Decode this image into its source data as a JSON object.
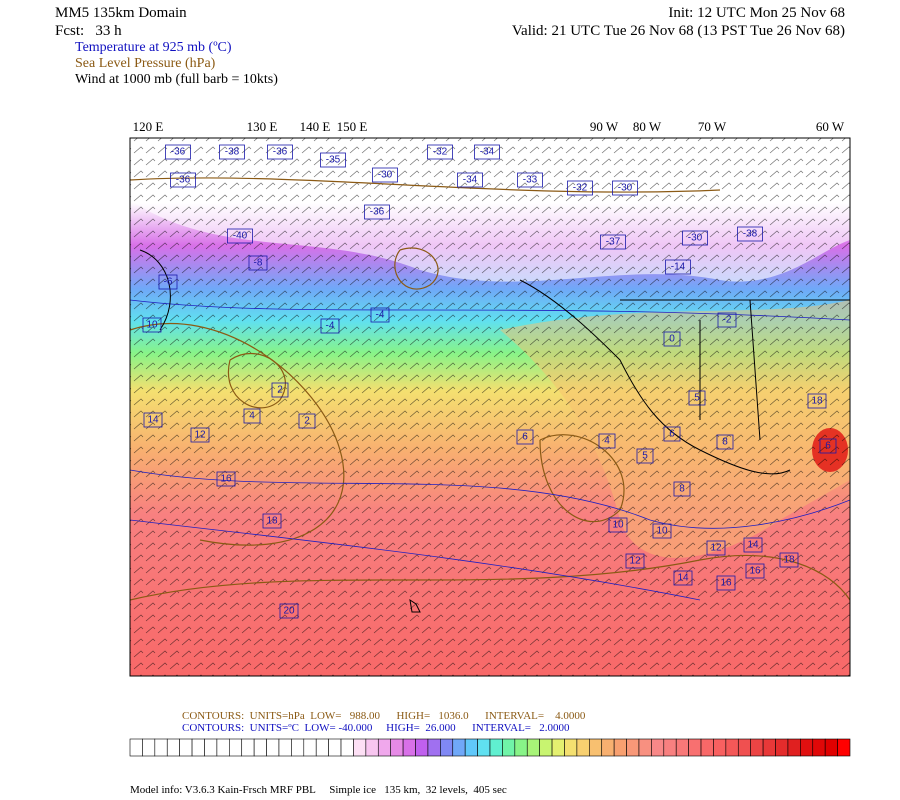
{
  "header": {
    "domain": "MM5 135km Domain",
    "forecast": "Fcst:   33 h",
    "init": "Init: 12 UTC Mon 25 Nov 68",
    "valid": "Valid: 21 UTC Tue 26 Nov 68 (13 PST Tue 26 Nov 68)"
  },
  "fields": {
    "temperature": "Temperature at 925 mb (ºC)",
    "pressure": "Sea Level Pressure (hPa)",
    "wind": "Wind at 1000 mb (full barb = 10kts)"
  },
  "map": {
    "longitudes": [
      "120 E",
      "130 E",
      "140 E",
      "150 E",
      "90 W",
      "80 W",
      "70 W",
      "60 W"
    ],
    "labels": [
      "-36",
      "-38",
      "-36",
      "-35",
      "-32",
      "-34",
      "-36",
      "-30",
      "-34",
      "-33",
      "-32",
      "-30",
      "-36",
      "-40",
      "-37",
      "-30",
      "-38",
      "-8",
      "-14",
      "-6",
      "-4",
      "-4",
      "10",
      "-2",
      "0",
      "2",
      "4",
      "2",
      "14",
      "12",
      "6",
      "4",
      "5",
      "6",
      "8",
      "16",
      "8",
      "18",
      "10",
      "10",
      "12",
      "14",
      "16",
      "12",
      "14",
      "16",
      "18",
      "20",
      "18",
      "6",
      "5"
    ]
  },
  "legend": {
    "pressure_contours": "CONTOURS:  UNITS=hPa  LOW=   988.00      HIGH=   1036.0      INTERVAL=    4.0000",
    "temperature_contours": "CONTOURS:  UNITS=ºC  LOW= -40.000     HIGH=  26.000      INTERVAL=   2.0000",
    "colors": [
      "#ffffff",
      "#ffffff",
      "#ffffff",
      "#ffffff",
      "#ffffff",
      "#ffffff",
      "#ffffff",
      "#ffffff",
      "#ffffff",
      "#ffffff",
      "#ffffff",
      "#ffffff",
      "#ffffff",
      "#ffffff",
      "#ffffff",
      "#ffffff",
      "#ffffff",
      "#ffffff",
      "#fde0f5",
      "#f8c6f0",
      "#f0a8ec",
      "#e68ae6",
      "#d870e8",
      "#c060ee",
      "#a070f0",
      "#8088f4",
      "#70a8f8",
      "#60c8fa",
      "#60e0f0",
      "#60f0d0",
      "#70f4a8",
      "#88f488",
      "#a8f478",
      "#c8f470",
      "#e4f070",
      "#f4e070",
      "#f8d070",
      "#f8c070",
      "#f8b070",
      "#f8a070",
      "#f89878",
      "#f89080",
      "#f88888",
      "#f88080",
      "#f87878",
      "#f87070",
      "#f86868",
      "#f86060",
      "#f45858",
      "#f05050",
      "#ec4444",
      "#e83838",
      "#e42c2c",
      "#e02020",
      "#e01010",
      "#e00808",
      "#e00000",
      "#ff0000"
    ]
  },
  "footer": {
    "model_info": "Model info: V3.6.3 Kain-Frsch MRF PBL     Simple ice   135 km,  32 levels,  405 sec"
  }
}
